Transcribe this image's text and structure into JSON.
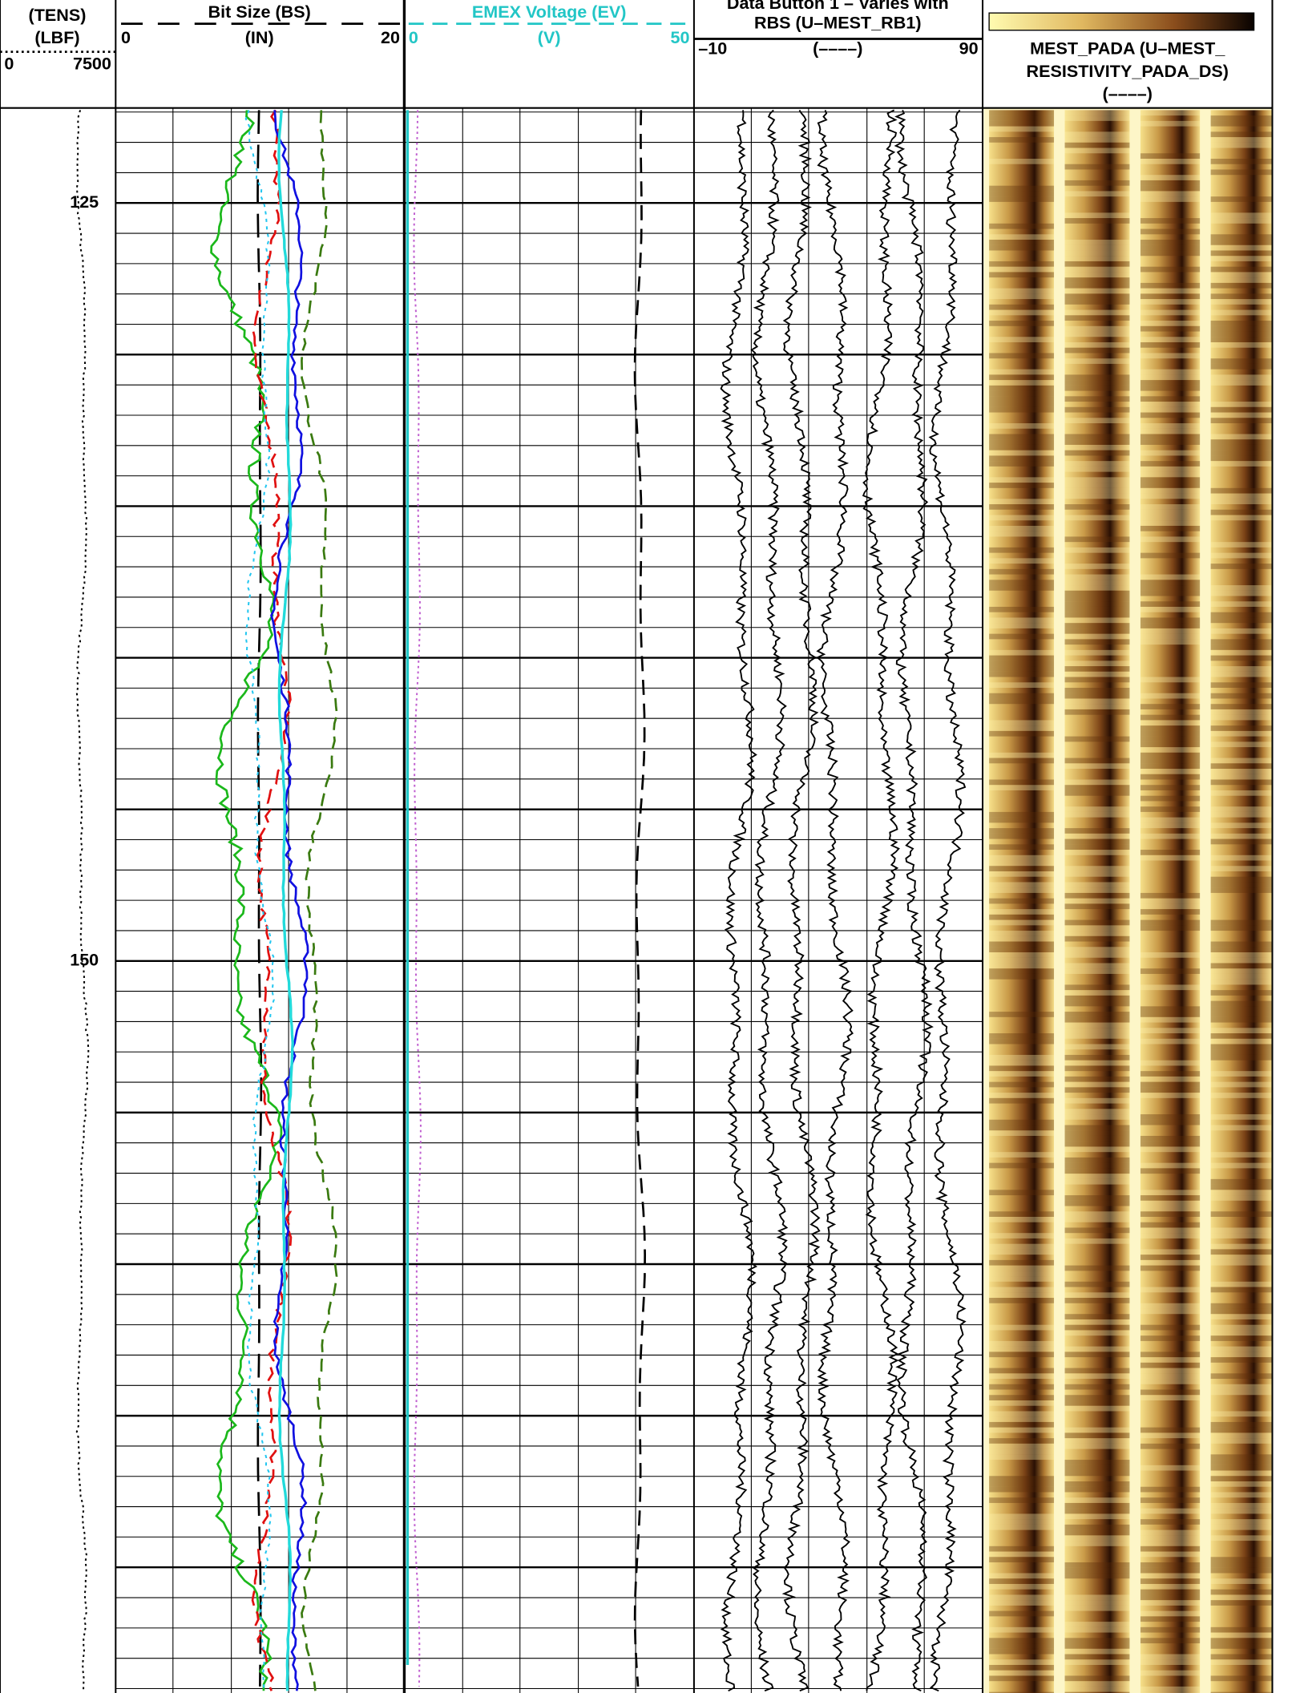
{
  "tracks": [
    {
      "title_lines": [
        "(TENS)",
        "(LBF)"
      ],
      "scale": [
        "0",
        "7500"
      ]
    },
    {
      "title_lines": [
        "Bit Size (BS)"
      ],
      "unit": "(IN)",
      "scale": [
        "0",
        "20"
      ]
    },
    {
      "title_lines": [
        "EMEX Voltage (EV)"
      ],
      "unit": "(V)",
      "scale": [
        "0",
        "50"
      ]
    },
    {
      "title_lines": [
        "Data Button 1 – Varies with",
        "RBS (U–MEST_RB1)"
      ],
      "unit": "(––––)",
      "scale": [
        "–10",
        "90"
      ]
    },
    {
      "title_lines": [
        "MEST_PADA (U–MEST_",
        "RESISTIVITY_PADA_DS)"
      ],
      "unit": "(––––)"
    }
  ],
  "depth_labels": [
    125,
    150
  ]
}
